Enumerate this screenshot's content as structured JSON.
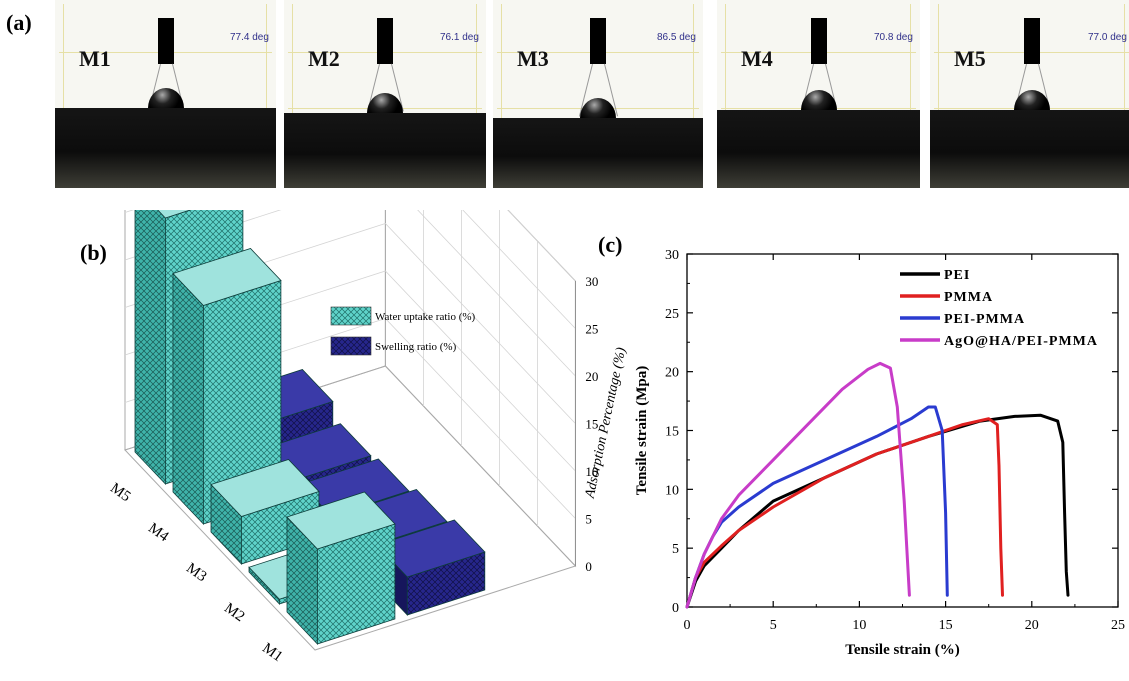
{
  "panel_labels": {
    "a": "(a)",
    "b": "(b)",
    "c": "(c)"
  },
  "contact_angle_photos": [
    {
      "label": "M1",
      "angle": "77.4 deg"
    },
    {
      "label": "M2",
      "angle": "76.1 deg"
    },
    {
      "label": "M3",
      "angle": "86.5 deg"
    },
    {
      "label": "M4",
      "angle": "70.8 deg"
    },
    {
      "label": "M5",
      "angle": "77.0 deg"
    }
  ],
  "chart_data": [
    {
      "type": "bar",
      "subtype": "3d-bar",
      "categories": [
        "M5",
        "M4",
        "M3",
        "M2",
        "M1"
      ],
      "zlabel": "Adsorption Percentage (%)",
      "zlim": [
        0,
        30
      ],
      "z_ticks": [
        "0",
        "5",
        "10",
        "15",
        "20",
        "25",
        "30"
      ],
      "legend_position": "top-right",
      "series": [
        {
          "name": "Water uptake ratio (%)",
          "values": [
            28,
            23,
            5,
            0.5,
            10
          ],
          "color": "#4cc9c0"
        },
        {
          "name": "Swelling ratio (%)",
          "values": [
            3,
            1.5,
            2,
            3,
            4
          ],
          "color": "#1f1f7a"
        }
      ]
    },
    {
      "type": "line",
      "xlabel": "Tensile strain (%)",
      "ylabel": "Tensile strain (Mpa)",
      "xlim": [
        0,
        25
      ],
      "ylim": [
        0,
        30
      ],
      "x_ticks": [
        "0",
        "5",
        "10",
        "15",
        "20",
        "25"
      ],
      "y_ticks": [
        "0",
        "5",
        "10",
        "15",
        "20",
        "25",
        "30"
      ],
      "legend_position": "top-right",
      "series": [
        {
          "name": "PEI",
          "color": "#000000",
          "x": [
            0,
            0.5,
            1,
            2,
            3,
            5,
            8,
            11,
            14,
            17,
            19,
            20.5,
            21.5,
            21.8,
            21.9,
            22,
            22.1
          ],
          "y": [
            0,
            2.2,
            3.5,
            5,
            6.5,
            9,
            11,
            13,
            14.5,
            15.8,
            16.2,
            16.3,
            15.8,
            14,
            8,
            3,
            1
          ]
        },
        {
          "name": "PMMA",
          "color": "#e02020",
          "x": [
            0,
            0.5,
            1,
            2,
            3,
            5,
            8,
            11,
            14,
            16,
            17.5,
            18,
            18.1,
            18.2,
            18.3
          ],
          "y": [
            0,
            2.5,
            3.8,
            5.2,
            6.5,
            8.5,
            11,
            13,
            14.5,
            15.5,
            16,
            15.5,
            12,
            5,
            1
          ]
        },
        {
          "name": "PEI-PMMA",
          "color": "#2a3bd0",
          "x": [
            0,
            0.5,
            1,
            1.5,
            2,
            3,
            5,
            8,
            11,
            13,
            14,
            14.4,
            14.8,
            15,
            15.1
          ],
          "y": [
            0,
            2.5,
            4.5,
            6,
            7.2,
            8.5,
            10.5,
            12.5,
            14.5,
            16,
            17,
            17,
            15,
            8,
            1
          ]
        },
        {
          "name": "AgO@HA/PEI-PMMA",
          "color": "#c83cc8",
          "x": [
            0,
            0.5,
            1,
            2,
            3,
            5,
            7,
            9,
            10.5,
            11.2,
            11.8,
            12.2,
            12.6,
            12.9
          ],
          "y": [
            0,
            2.5,
            4.5,
            7.5,
            9.5,
            12.5,
            15.5,
            18.5,
            20.2,
            20.7,
            20.3,
            17,
            9,
            1
          ]
        }
      ]
    }
  ]
}
